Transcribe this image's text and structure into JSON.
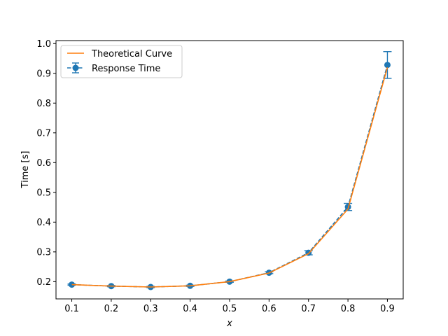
{
  "chart_data": {
    "type": "line",
    "title": "",
    "xlabel": "x",
    "ylabel": "Time [s]",
    "xlim": [
      0.06,
      0.94
    ],
    "ylim": [
      0.142,
      1.01
    ],
    "xticks": [
      0.1,
      0.2,
      0.3,
      0.4,
      0.5,
      0.6,
      0.7,
      0.8,
      0.9
    ],
    "xtick_labels": [
      "0.1",
      "0.2",
      "0.3",
      "0.4",
      "0.5",
      "0.6",
      "0.7",
      "0.8",
      "0.9"
    ],
    "yticks": [
      0.2,
      0.3,
      0.4,
      0.5,
      0.6,
      0.7,
      0.8,
      0.9,
      1.0
    ],
    "ytick_labels": [
      "0.2",
      "0.3",
      "0.4",
      "0.5",
      "0.6",
      "0.7",
      "0.8",
      "0.9",
      "1.0"
    ],
    "grid": false,
    "legend_position": "top-left",
    "series": [
      {
        "name": "Theoretical Curve",
        "style": "solid-line",
        "color": "#ff7f0e",
        "x": [
          0.1,
          0.2,
          0.3,
          0.4,
          0.5,
          0.6,
          0.7,
          0.8,
          0.9
        ],
        "y": [
          0.19,
          0.185,
          0.182,
          0.186,
          0.2,
          0.229,
          0.294,
          0.444,
          0.92
        ]
      },
      {
        "name": "Response Time",
        "style": "dashed-line-markers-errorbars",
        "color": "#1f77b4",
        "x": [
          0.1,
          0.2,
          0.3,
          0.4,
          0.5,
          0.6,
          0.7,
          0.8,
          0.9
        ],
        "y": [
          0.19,
          0.185,
          0.182,
          0.186,
          0.2,
          0.23,
          0.297,
          0.451,
          0.928
        ],
        "yerr": [
          0.002,
          0.002,
          0.002,
          0.002,
          0.002,
          0.003,
          0.007,
          0.012,
          0.045
        ]
      }
    ]
  }
}
